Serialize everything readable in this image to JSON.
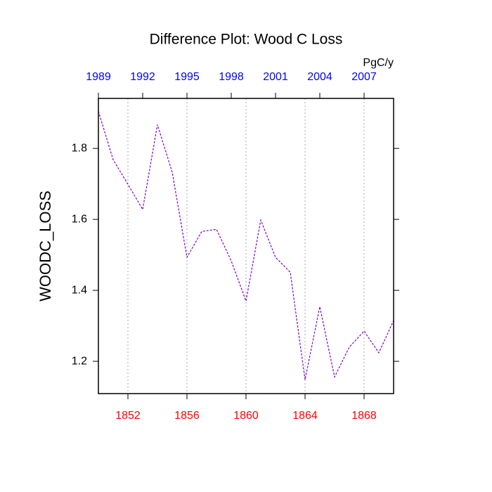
{
  "chart_data": {
    "type": "line",
    "title": "Difference Plot: Wood C Loss",
    "ylabel": "WOODC_LOSS",
    "units": "PgC/y",
    "x": [
      1850,
      1851,
      1852,
      1853,
      1854,
      1855,
      1856,
      1857,
      1858,
      1859,
      1860,
      1861,
      1862,
      1863,
      1864,
      1865,
      1866,
      1867,
      1868,
      1869,
      1870
    ],
    "series": [
      {
        "color": "#7a00cc",
        "values": [
          1.905,
          1.768,
          1.699,
          1.628,
          1.867,
          1.733,
          1.493,
          1.566,
          1.572,
          1.483,
          1.37,
          1.598,
          1.493,
          1.451,
          1.148,
          1.354,
          1.156,
          1.24,
          1.285,
          1.224,
          1.315
        ]
      }
    ],
    "xlim": [
      1850,
      1870
    ],
    "xticks": [
      1852,
      1856,
      1860,
      1864,
      1868
    ],
    "x_tick_color": "#ff0000",
    "x2lim": [
      1989,
      2009
    ],
    "x2ticks": [
      1989,
      1992,
      1995,
      1998,
      2001,
      2004,
      2007
    ],
    "x2_tick_color": "#0000ff",
    "ylim": [
      1.109,
      1.941
    ],
    "yticks": [
      1.2,
      1.4,
      1.6,
      1.8
    ],
    "grid": true
  }
}
